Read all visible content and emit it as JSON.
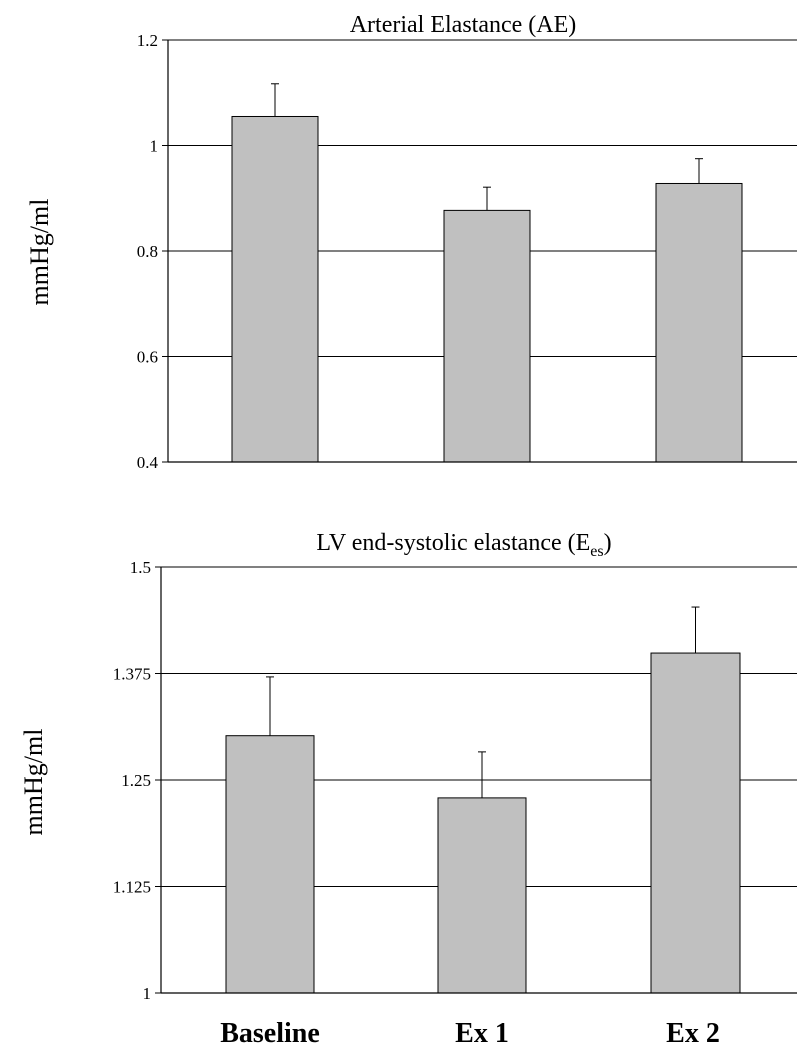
{
  "chart_data": [
    {
      "type": "bar",
      "title": "Arterial Elastance (AE)",
      "ylabel": "mmHg/ml",
      "xlabel": "",
      "categories": [
        "Baseline",
        "Ex 1",
        "Ex 2"
      ],
      "values": [
        1.055,
        0.877,
        0.928
      ],
      "errors": [
        0.062,
        0.044,
        0.047
      ],
      "ylim": [
        0.4,
        1.2
      ],
      "yticks": [
        0.4,
        0.6,
        0.8,
        1.0,
        1.2
      ],
      "ytick_labels": [
        "0.4",
        "0.6",
        "0.8",
        "1",
        "1.2"
      ],
      "gridlines": [
        0.6,
        0.8,
        1.0
      ],
      "category_labels_shown": false,
      "bar_color": "#c0c0c0"
    },
    {
      "type": "bar",
      "title_main": "LV end-systolic elastance (E",
      "title_sub": "es",
      "title_close": ")",
      "ylabel": "mmHg/ml",
      "xlabel": "",
      "categories": [
        "Baseline",
        "Ex 1",
        "Ex 2"
      ],
      "values": [
        1.302,
        1.229,
        1.399
      ],
      "errors": [
        0.069,
        0.054,
        0.054
      ],
      "ylim": [
        1.0,
        1.5
      ],
      "yticks": [
        1.0,
        1.125,
        1.25,
        1.375,
        1.5
      ],
      "ytick_labels": [
        "1",
        "1.125",
        "1.25",
        "1.375",
        "1.5"
      ],
      "gridlines": [
        1.125,
        1.25,
        1.375
      ],
      "category_labels_shown": true,
      "bar_color": "#c0c0c0"
    }
  ]
}
